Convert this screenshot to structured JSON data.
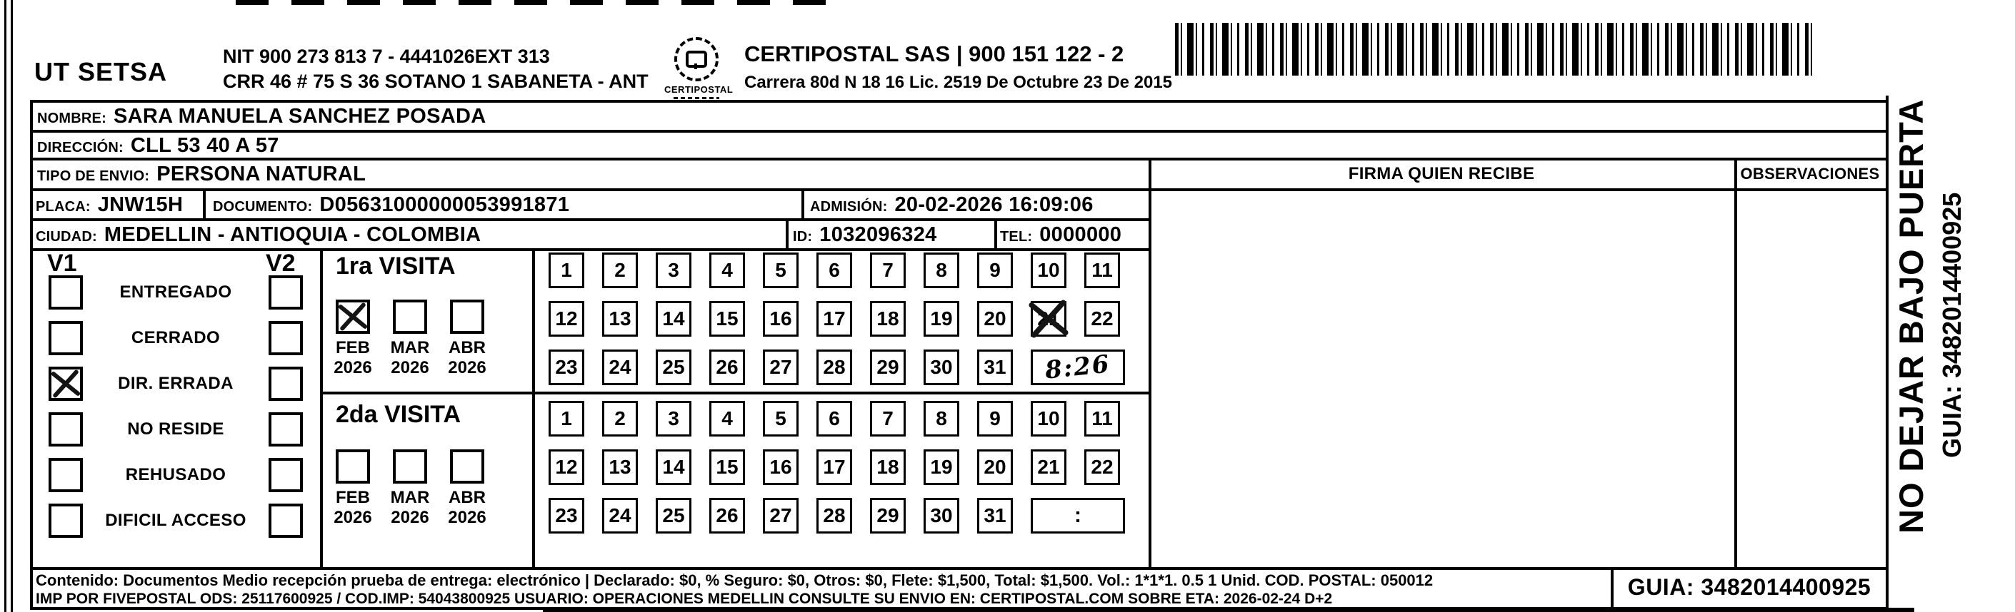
{
  "header": {
    "company": "UT SETSA",
    "nit_line1": "NIT 900 273 813 7 - 4441026EXT 313",
    "nit_line2": "CRR 46 # 75 S 36 SOTANO 1 SABANETA - ANT",
    "logo_text": "CERTIPOSTAL",
    "certipostal_line1": "CERTIPOSTAL SAS | 900 151 122 - 2",
    "certipostal_line2": "Carrera 80d N 18 16  Lic. 2519 De Octubre 23 De 2015"
  },
  "form": {
    "nombre_label": "NOMBRE:",
    "nombre": "SARA MANUELA SANCHEZ POSADA",
    "direccion_label": "DIRECCIÓN:",
    "direccion": "CLL 53 40 A 57",
    "tipo_label": "TIPO DE ENVIO:",
    "tipo": "PERSONA NATURAL",
    "placa_label": "PLACA:",
    "placa": "JNW15H",
    "documento_label": "DOCUMENTO:",
    "documento": "D05631000000053991871",
    "admision_label": "ADMISIÓN:",
    "admision": "20-02-2026 16:09:06",
    "ciudad_label": "CIUDAD:",
    "ciudad": "MEDELLIN - ANTIOQUIA - COLOMBIA",
    "id_label": "ID:",
    "id": "1032096324",
    "tel_label": "TEL:",
    "tel": "0000000"
  },
  "status": {
    "v1_header": "V1",
    "v2_header": "V2",
    "options": [
      {
        "label": "ENTREGADO",
        "v1": false,
        "v2": false
      },
      {
        "label": "CERRADO",
        "v1": false,
        "v2": false
      },
      {
        "label": "DIR. ERRADA",
        "v1": true,
        "v2": false
      },
      {
        "label": "NO RESIDE",
        "v1": false,
        "v2": false
      },
      {
        "label": "REHUSADO",
        "v1": false,
        "v2": false
      },
      {
        "label": "DIFICIL ACCESO",
        "v1": false,
        "v2": false
      }
    ]
  },
  "visits": {
    "first": {
      "title": "1ra VISITA",
      "months": [
        {
          "name": "FEB",
          "year": "2026",
          "checked": true
        },
        {
          "name": "MAR",
          "year": "2026",
          "checked": false
        },
        {
          "name": "ABR",
          "year": "2026",
          "checked": false
        }
      ],
      "day_rows": [
        [
          "1",
          "2",
          "3",
          "4",
          "5",
          "6",
          "7",
          "8",
          "9",
          "10",
          "11"
        ],
        [
          "12",
          "13",
          "14",
          "15",
          "16",
          "17",
          "18",
          "19",
          "20",
          "21",
          "22"
        ],
        [
          "23",
          "24",
          "25",
          "26",
          "27",
          "28",
          "29",
          "30",
          "31"
        ]
      ],
      "crossed_day": "21",
      "time_handwritten": "8:26"
    },
    "second": {
      "title": "2da VISITA",
      "months": [
        {
          "name": "FEB",
          "year": "2026",
          "checked": false
        },
        {
          "name": "MAR",
          "year": "2026",
          "checked": false
        },
        {
          "name": "ABR",
          "year": "2026",
          "checked": false
        }
      ],
      "day_rows": [
        [
          "1",
          "2",
          "3",
          "4",
          "5",
          "6",
          "7",
          "8",
          "9",
          "10",
          "11"
        ],
        [
          "12",
          "13",
          "14",
          "15",
          "16",
          "17",
          "18",
          "19",
          "20",
          "21",
          "22"
        ],
        [
          "23",
          "24",
          "25",
          "26",
          "27",
          "28",
          "29",
          "30",
          "31"
        ]
      ],
      "crossed_day": "",
      "time_printed": ":"
    }
  },
  "signature": {
    "firma_header": "FIRMA QUIEN RECIBE",
    "observaciones_header": "OBSERVACIONES"
  },
  "side": {
    "warning": "NO DEJAR BAJO PUERTA",
    "guia": "GUIA: 3482014400925"
  },
  "footer": {
    "line1": "Contenido: Documentos Medio recepción prueba de entrega: electrónico | Declarado: $0, % Seguro: $0, Otros: $0, Flete: $1,500, Total: $1,500. Vol.: 1*1*1. 0.5  1 Unid. COD. POSTAL: 050012",
    "line2": "IMP POR FIVEPOSTAL ODS: 25117600925 / COD.IMP: 54043800925 USUARIO: OPERACIONES MEDELLIN CONSULTE SU ENVIO EN: CERTIPOSTAL.COM SOBRE ETA: 2026-02-24 D+2",
    "guia": "GUIA: 3482014400925"
  }
}
